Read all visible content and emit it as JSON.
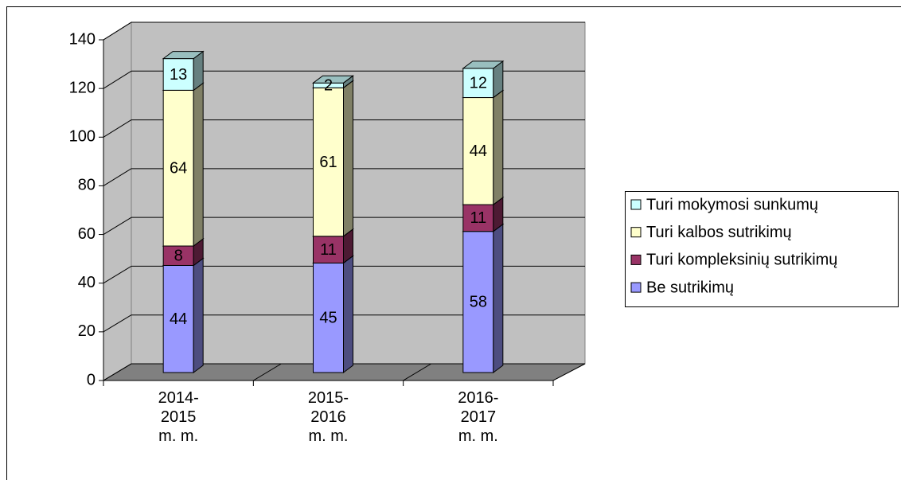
{
  "chart_data": {
    "type": "bar3d_stacked",
    "categories": [
      "2014-2015 m. m.",
      "2015-2016 m. m.",
      "2016-2017 m. m."
    ],
    "series": [
      {
        "name": "Be sutrikimų",
        "color": "#9999ff",
        "values": [
          44,
          45,
          58
        ]
      },
      {
        "name": "Turi kompleksinių sutrikimų",
        "color": "#993366",
        "values": [
          8,
          11,
          11
        ]
      },
      {
        "name": "Turi kalbos sutrikimų",
        "color": "#ffffcc",
        "values": [
          64,
          61,
          44
        ]
      },
      {
        "name": "Turi mokymosi sunkumų",
        "color": "#ccffff",
        "values": [
          13,
          2,
          12
        ]
      }
    ],
    "ylim": [
      0,
      140
    ],
    "yticks": [
      0,
      20,
      40,
      60,
      80,
      100,
      120,
      140
    ],
    "grid": true,
    "legend": "right"
  }
}
